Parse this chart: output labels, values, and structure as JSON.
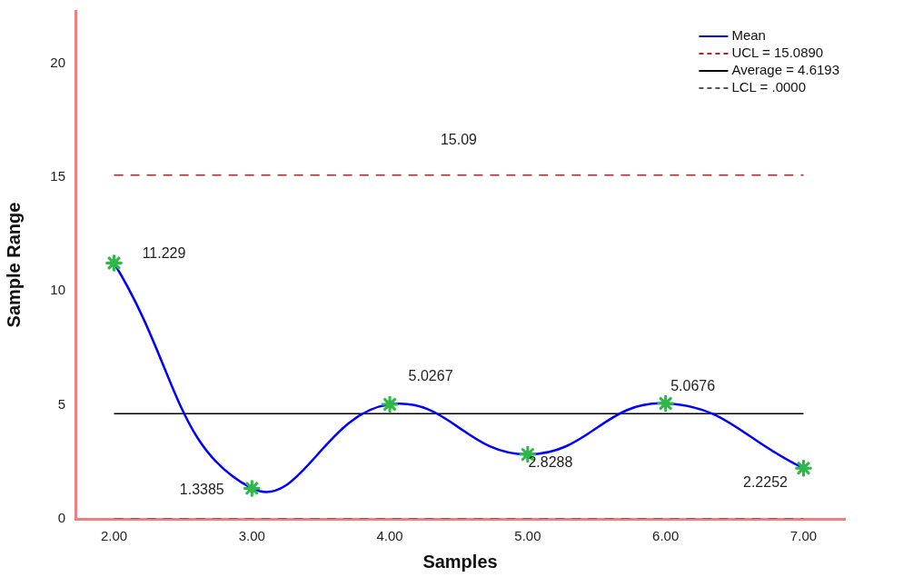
{
  "chart_data": {
    "type": "line",
    "xlabel": "Samples",
    "ylabel": "Sample Range",
    "xlim": [
      1.72,
      7.3
    ],
    "xticks": [
      {
        "value": 2,
        "label": "2.00"
      },
      {
        "value": 3,
        "label": "3.00"
      },
      {
        "value": 4,
        "label": "4.00"
      },
      {
        "value": 5,
        "label": "5.00"
      },
      {
        "value": 6,
        "label": "6.00"
      },
      {
        "value": 7,
        "label": "7.00"
      }
    ],
    "ylim": [
      0,
      22.3
    ],
    "yticks": [
      0,
      5,
      10,
      15,
      20
    ],
    "series": [
      {
        "name": "Mean",
        "color": "#0000ff",
        "x": [
          2,
          3,
          4,
          5,
          6,
          7
        ],
        "values": [
          11.229,
          1.3385,
          5.0267,
          2.8288,
          5.0676,
          2.2252
        ],
        "marker": "star",
        "line_style": "solid",
        "value_labels": [
          "11.229",
          "1.3385",
          "5.0267",
          "2.8288",
          "5.0676",
          "2.2252"
        ]
      },
      {
        "name": "UCL = 15.0890",
        "color": "#b22222",
        "x": [
          2,
          7
        ],
        "values": [
          15.089,
          15.089
        ],
        "marker": "none",
        "line_style": "dashed"
      },
      {
        "name": "Average = 4.6193",
        "color": "#000000",
        "x": [
          2,
          7
        ],
        "values": [
          4.6193,
          4.6193
        ],
        "marker": "none",
        "line_style": "solid"
      },
      {
        "name": "LCL = .0000",
        "color": "#555555",
        "x": [
          2,
          7
        ],
        "values": [
          0,
          0
        ],
        "marker": "none",
        "line_style": "dashed"
      }
    ],
    "annotations": [
      {
        "text": "15.09",
        "x": 4.5,
        "y": 15.09
      }
    ],
    "grid": false,
    "legend": "top right"
  }
}
